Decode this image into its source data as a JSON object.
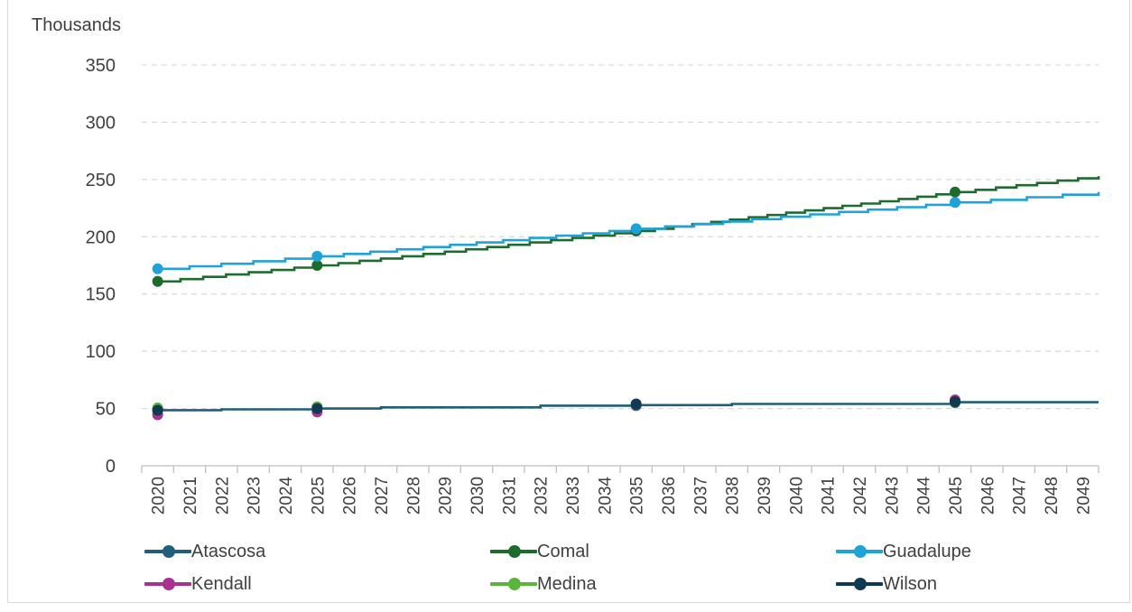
{
  "chart_data": {
    "type": "line",
    "unit_label": "Thousands",
    "ylim": [
      0,
      350
    ],
    "yticks": [
      0,
      50,
      100,
      150,
      200,
      250,
      300,
      350
    ],
    "grid": true,
    "legend_position": "bottom",
    "categories": [
      "2020",
      "2021",
      "2022",
      "2023",
      "2024",
      "2025",
      "2026",
      "2027",
      "2028",
      "2029",
      "2030",
      "2031",
      "2032",
      "2033",
      "2034",
      "2035",
      "2036",
      "2037",
      "2038",
      "2039",
      "2040",
      "2041",
      "2042",
      "2043",
      "2044",
      "2045",
      "2046",
      "2047",
      "2048",
      "2049"
    ],
    "series": [
      {
        "name": "Atascosa",
        "color": "#1f5f7a",
        "markers": [
          [
            2020,
            48.5
          ],
          [
            2025,
            50
          ],
          [
            2035,
            53
          ],
          [
            2045,
            55.5
          ]
        ],
        "line": [
          [
            2020,
            48.5
          ],
          [
            2022,
            49.3
          ],
          [
            2025,
            50
          ],
          [
            2027,
            51
          ],
          [
            2032,
            52.5
          ],
          [
            2035,
            53
          ],
          [
            2038,
            54
          ],
          [
            2045,
            55.5
          ],
          [
            2049.5,
            55.5
          ]
        ]
      },
      {
        "name": "Comal",
        "color": "#1e6b2e",
        "markers": [
          [
            2020,
            161
          ],
          [
            2025,
            175
          ],
          [
            2035,
            205
          ],
          [
            2045,
            239
          ]
        ],
        "line": [
          [
            2020,
            161
          ],
          [
            2025,
            175
          ],
          [
            2035,
            205
          ],
          [
            2045,
            239
          ],
          [
            2049.5,
            253
          ]
        ]
      },
      {
        "name": "Guadalupe",
        "color": "#1fa2d8",
        "markers": [
          [
            2020,
            172
          ],
          [
            2025,
            183
          ],
          [
            2035,
            207
          ],
          [
            2045,
            230
          ]
        ],
        "line": [
          [
            2020,
            172
          ],
          [
            2025,
            183
          ],
          [
            2035,
            207
          ],
          [
            2045,
            230
          ],
          [
            2049.5,
            239
          ]
        ]
      },
      {
        "name": "Kendall",
        "color": "#a8328f",
        "markers": [
          [
            2020,
            44.5
          ],
          [
            2025,
            47
          ],
          [
            2035,
            52.5
          ],
          [
            2045,
            57.5
          ]
        ]
      },
      {
        "name": "Medina",
        "color": "#5ab53b",
        "markers": [
          [
            2020,
            50.5
          ],
          [
            2025,
            51.5
          ],
          [
            2035,
            53.5
          ],
          [
            2045,
            55
          ]
        ]
      },
      {
        "name": "Wilson",
        "color": "#0e3a52",
        "markers": [
          [
            2020,
            48.5
          ],
          [
            2025,
            50
          ],
          [
            2035,
            54
          ],
          [
            2045,
            56
          ]
        ]
      }
    ]
  }
}
